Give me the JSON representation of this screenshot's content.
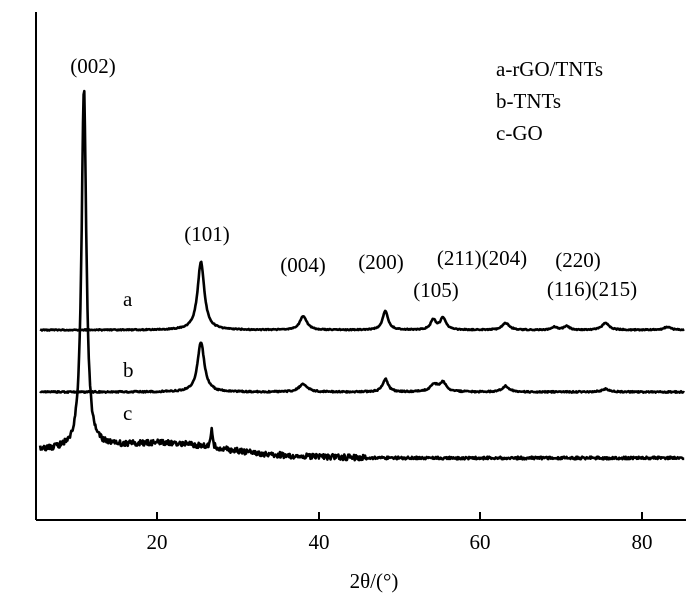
{
  "chart_data": {
    "type": "line",
    "xlabel": "2θ/(°)",
    "ylabel": "",
    "xlim": [
      5,
      85
    ],
    "x_ticks": [
      "20",
      "40",
      "60",
      "80"
    ],
    "grid": false,
    "legend_position": "top-right",
    "legend": [
      "a-rGO/TNTs",
      "b-TNTs",
      "c-GO"
    ],
    "series": [
      {
        "label": "a",
        "baseline": 0.62,
        "peaks": [
          {
            "x": 25.3,
            "height": 0.68,
            "width": 0.5
          },
          {
            "x": 37.9,
            "height": 0.14,
            "width": 0.5
          },
          {
            "x": 48.0,
            "height": 0.19,
            "width": 0.4
          },
          {
            "x": 53.9,
            "height": 0.1,
            "width": 0.4
          },
          {
            "x": 55.1,
            "height": 0.12,
            "width": 0.4
          },
          {
            "x": 62.8,
            "height": 0.07,
            "width": 0.5
          },
          {
            "x": 68.8,
            "height": 0.03,
            "width": 0.4
          },
          {
            "x": 70.3,
            "height": 0.04,
            "width": 0.4
          },
          {
            "x": 75.1,
            "height": 0.07,
            "width": 0.5
          },
          {
            "x": 82.7,
            "height": 0.03,
            "width": 0.5
          }
        ]
      },
      {
        "label": "b",
        "baseline": 0.38,
        "peaks": [
          {
            "x": 25.3,
            "height": 0.5,
            "width": 0.5
          },
          {
            "x": 37.9,
            "height": 0.08,
            "width": 0.6
          },
          {
            "x": 48.0,
            "height": 0.13,
            "width": 0.4
          },
          {
            "x": 54.0,
            "height": 0.07,
            "width": 0.6
          },
          {
            "x": 55.1,
            "height": 0.09,
            "width": 0.5
          },
          {
            "x": 62.8,
            "height": 0.06,
            "width": 0.5
          },
          {
            "x": 75.1,
            "height": 0.03,
            "width": 0.6
          }
        ]
      },
      {
        "label": "c",
        "baseline": 0.0,
        "peaks": [
          {
            "x": 10.9,
            "height": 4.25,
            "width": 0.35
          },
          {
            "x": 26.6,
            "height": 0.2,
            "width": 0.15
          }
        ]
      }
    ],
    "peak_labels": [
      "(002)",
      "(101)",
      "(004)",
      "(200)",
      "(105)",
      "(211)(204)",
      "(220)",
      "(116)(215)"
    ]
  }
}
